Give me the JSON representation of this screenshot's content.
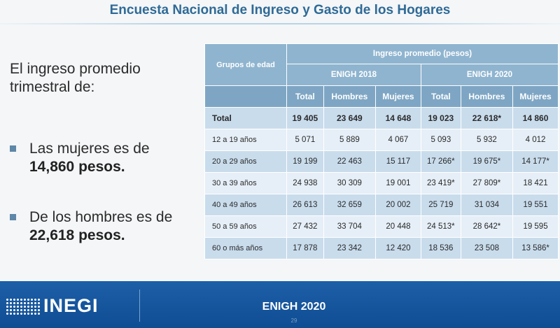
{
  "header": {
    "title": "Encuesta Nacional de Ingreso y Gasto de los Hogares"
  },
  "left": {
    "intro": "El ingreso promedio trimestral de:",
    "bullets": [
      {
        "text": "Las mujeres es de",
        "value": "14,860 pesos."
      },
      {
        "text": "De los hombres es de",
        "value": "22,618 pesos."
      }
    ]
  },
  "table": {
    "group_header": "Grupos de edad",
    "super_header": "Ingreso promedio (pesos)",
    "years": [
      "ENIGH 2018",
      "ENIGH 2020"
    ],
    "subheaders": [
      "Total",
      "Hombres",
      "Mujeres",
      "Total",
      "Hombres",
      "Mujeres"
    ],
    "rows": [
      {
        "label": "Total",
        "values": [
          "19 405",
          "23 649",
          "14 648",
          "19 023",
          "22 618*",
          "14 860"
        ]
      },
      {
        "label": "12 a 19 años",
        "values": [
          "5 071",
          "5 889",
          "4 067",
          "5 093",
          "5 932",
          "4 012"
        ]
      },
      {
        "label": "20 a 29 años",
        "values": [
          "19 199",
          "22 463",
          "15 117",
          "17 266*",
          "19 675*",
          "14 177*"
        ]
      },
      {
        "label": "30 a 39 años",
        "values": [
          "24 938",
          "30 309",
          "19 001",
          "23 419*",
          "27 809*",
          "18 421"
        ]
      },
      {
        "label": "40 a 49 años",
        "values": [
          "26 613",
          "32 659",
          "20 002",
          "25 719",
          "31 034",
          "19 551"
        ]
      },
      {
        "label": "50 a 59 años",
        "values": [
          "27 432",
          "33 704",
          "20 448",
          "24 513*",
          "28 642*",
          "19 595"
        ]
      },
      {
        "label": "60 o más años",
        "values": [
          "17 878",
          "23 342",
          "12 420",
          "18 536",
          "23 508",
          "13 586*"
        ]
      }
    ]
  },
  "footer": {
    "logo": "INEGI",
    "logo_icon": "dot-grid-logo-icon",
    "title": "ENIGH 2020",
    "page": "29"
  },
  "colors": {
    "title": "#2f6a96",
    "header_fill": "#8fb4cf",
    "row_dark": "#c9dcec",
    "row_light": "#e6eff7",
    "footer_fill": "#1d5fa8"
  }
}
